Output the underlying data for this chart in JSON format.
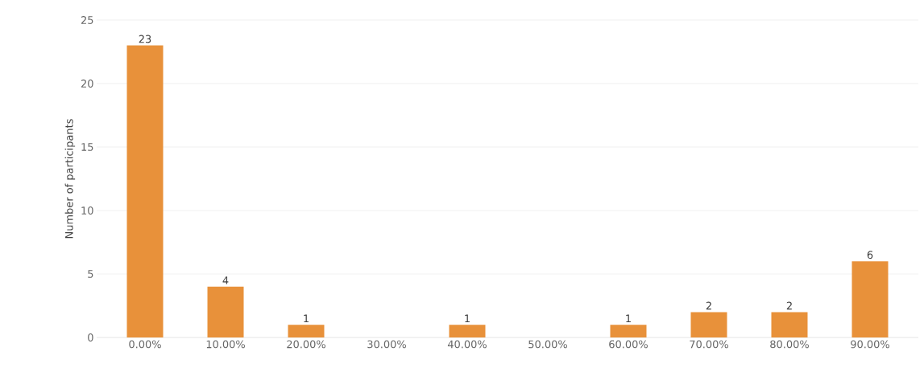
{
  "chart_data": {
    "type": "bar",
    "ylabel": "Number of participants",
    "categories": [
      "0.00%",
      "10.00%",
      "20.00%",
      "30.00%",
      "40.00%",
      "50.00%",
      "60.00%",
      "70.00%",
      "80.00%",
      "90.00%"
    ],
    "values": [
      23,
      4,
      1,
      null,
      1,
      null,
      1,
      2,
      2,
      6
    ],
    "color": "#e8913a",
    "ylim": [
      0,
      25
    ],
    "yticks": [
      0,
      5,
      10,
      15,
      20,
      25
    ],
    "grid": "y",
    "data_labels": true
  }
}
